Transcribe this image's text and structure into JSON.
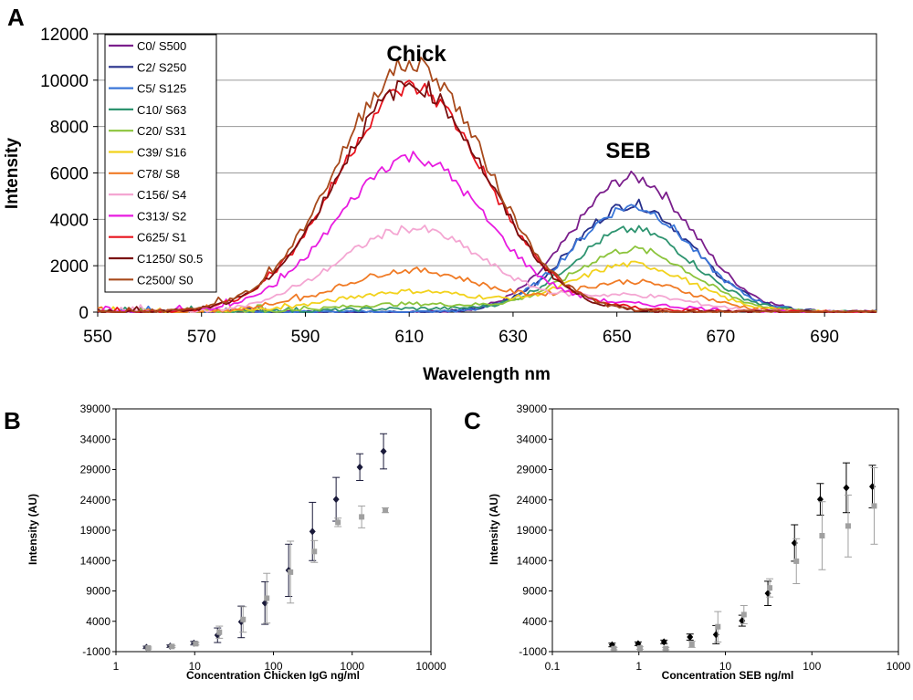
{
  "chart_data": [
    {
      "panel": "A",
      "type": "line",
      "title": "",
      "xlabel": "Wavelength nm",
      "ylabel": "Intensity",
      "xlim": [
        550,
        700
      ],
      "ylim": [
        0,
        12000
      ],
      "xticks": [
        550,
        570,
        590,
        610,
        630,
        650,
        670,
        690
      ],
      "yticks": [
        0,
        2000,
        4000,
        6000,
        8000,
        10000,
        12000
      ],
      "grid": "horizontal",
      "legend": "top-left",
      "annotations": [
        {
          "text": "Chick",
          "x": 611,
          "y": 11300
        },
        {
          "text": "SEB",
          "x": 653,
          "y": 6900
        }
      ],
      "series": [
        {
          "name": "C0/ S500",
          "color": "#7b1f8c",
          "chick": 0,
          "seb": 5800
        },
        {
          "name": "C2/ S250",
          "color": "#27308c",
          "chick": 0,
          "seb": 4650
        },
        {
          "name": "C5/ S125",
          "color": "#3a76d8",
          "chick": 0,
          "seb": 4550
        },
        {
          "name": "C10/ S63",
          "color": "#2e9470",
          "chick": 150,
          "seb": 3550
        },
        {
          "name": "C20/ S31",
          "color": "#8cc43c",
          "chick": 350,
          "seb": 2700
        },
        {
          "name": "C39/ S16",
          "color": "#f2d21c",
          "chick": 900,
          "seb": 2050
        },
        {
          "name": "C78/ S8",
          "color": "#f07b26",
          "chick": 1800,
          "seb": 1300
        },
        {
          "name": "C156/ S4",
          "color": "#f4a6d2",
          "chick": 3600,
          "seb": 700
        },
        {
          "name": "C313/ S2",
          "color": "#e81ce0",
          "chick": 6700,
          "seb": 300
        },
        {
          "name": "C625/ S1",
          "color": "#e8141e",
          "chick": 9700,
          "seb": 100
        },
        {
          "name": "C1250/ S0.5",
          "color": "#7a0e0e",
          "chick": 9800,
          "seb": 0
        },
        {
          "name": "C2500/ S0",
          "color": "#a84a1c",
          "chick": 10700,
          "seb": 0
        }
      ]
    },
    {
      "panel": "B",
      "type": "scatter",
      "xlabel": "Concentration Chicken IgG ng/ml",
      "ylabel": "Intensity (AU)",
      "xscale": "log",
      "xlim": [
        1,
        10000
      ],
      "ylim": [
        -1000,
        39000
      ],
      "xticks": [
        "1",
        "10",
        "100",
        "1000",
        "10000"
      ],
      "yticks": [
        "-1000",
        "4000",
        "9000",
        "14000",
        "19000",
        "24000",
        "29000",
        "34000",
        "39000"
      ],
      "series": [
        {
          "name": "dark",
          "color": "#1a1a3a",
          "x": [
            2.44,
            4.88,
            9.77,
            19.5,
            39,
            78,
            156,
            313,
            625,
            1250,
            2500
          ],
          "values": [
            -300,
            -100,
            400,
            1700,
            3900,
            7000,
            12400,
            18800,
            24100,
            29400,
            32000
          ],
          "errors": [
            200,
            200,
            300,
            1200,
            2600,
            3500,
            4300,
            4800,
            3600,
            2200,
            2900
          ]
        },
        {
          "name": "grey",
          "color": "#a0a0a0",
          "x": [
            2.44,
            4.88,
            9.77,
            19.5,
            39,
            78,
            156,
            313,
            625,
            1250,
            2500
          ],
          "values": [
            -400,
            -150,
            300,
            2200,
            4300,
            7800,
            12100,
            15500,
            20300,
            21200,
            22300
          ],
          "errors": [
            150,
            150,
            200,
            1000,
            2100,
            4100,
            5100,
            1800,
            700,
            1800,
            400
          ]
        }
      ]
    },
    {
      "panel": "C",
      "type": "scatter",
      "xlabel": "Concentration SEB ng/ml",
      "ylabel": "Intensity (AU)",
      "xscale": "log",
      "xlim": [
        0.1,
        1000
      ],
      "ylim": [
        -1000,
        39000
      ],
      "xticks": [
        "0.1",
        "1",
        "10",
        "100",
        "1000"
      ],
      "yticks": [
        "-1000",
        "4000",
        "9000",
        "14000",
        "19000",
        "24000",
        "29000",
        "34000",
        "39000"
      ],
      "series": [
        {
          "name": "dark",
          "color": "#000000",
          "x": [
            0.49,
            0.98,
            1.95,
            3.9,
            7.8,
            15.6,
            31,
            63,
            125,
            250,
            500
          ],
          "values": [
            100,
            300,
            600,
            1400,
            1800,
            4100,
            8600,
            16900,
            24100,
            26000,
            26200
          ],
          "errors": [
            300,
            300,
            300,
            500,
            1500,
            900,
            2000,
            3000,
            2600,
            4100,
            3500
          ]
        },
        {
          "name": "grey",
          "color": "#a0a0a0",
          "x": [
            0.49,
            0.98,
            1.95,
            3.9,
            7.8,
            15.6,
            31,
            63,
            125,
            250,
            500
          ],
          "values": [
            -500,
            -400,
            -500,
            200,
            3100,
            5100,
            9500,
            13900,
            18100,
            19700,
            23000
          ],
          "errors": [
            200,
            200,
            200,
            500,
            2500,
            1500,
            1500,
            3700,
            5600,
            5100,
            6300
          ]
        }
      ]
    }
  ]
}
